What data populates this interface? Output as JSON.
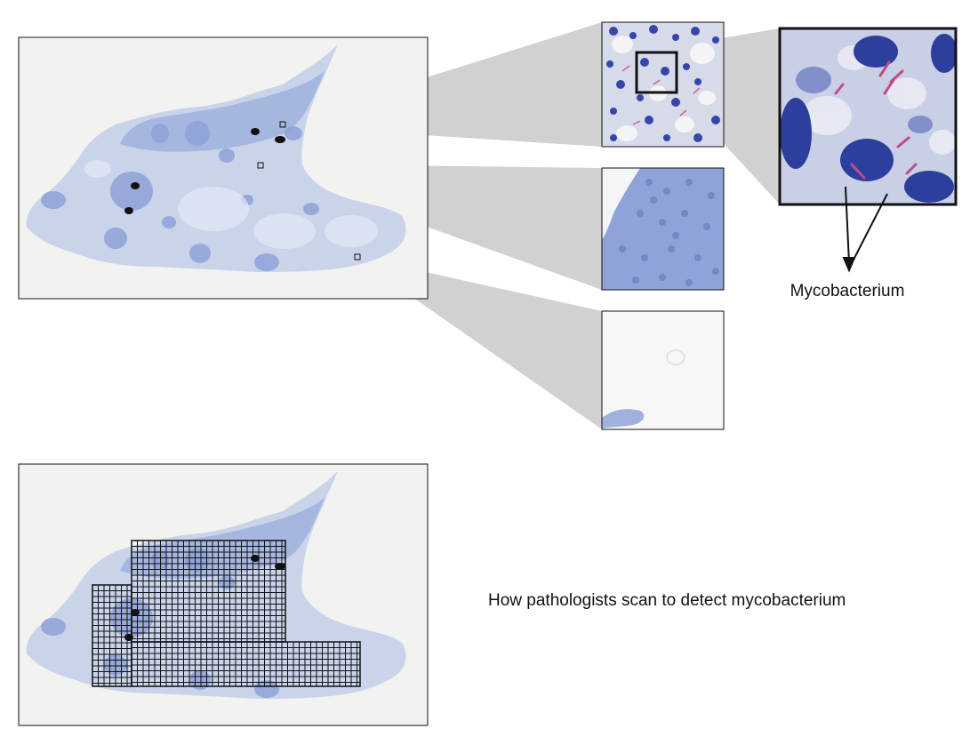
{
  "labels": {
    "organism": "Mycobacterium",
    "caption": "How pathologists scan to detect mycobacterium"
  },
  "colors": {
    "background": "#ffffff",
    "slide_background": "#f2f2f0",
    "tissue_light": "#c9d3ea",
    "tissue_mid": "#9fb2de",
    "tissue_dark": "#7d94d0",
    "nucleus": "#2c3f9c",
    "bacteria": "#c04a8a",
    "zoom_cone": "#c9c9c9",
    "ink_marks": "#111111",
    "grid": "#111111"
  },
  "panels": {
    "overview_slide": "whole-slide tissue section",
    "zoom_views": [
      "high-power field with bacteria",
      "dense cell region",
      "mostly empty region"
    ],
    "detail_view": "magnified field showing mycobacterium",
    "scan_slide": "whole-slide with scanning grid"
  }
}
